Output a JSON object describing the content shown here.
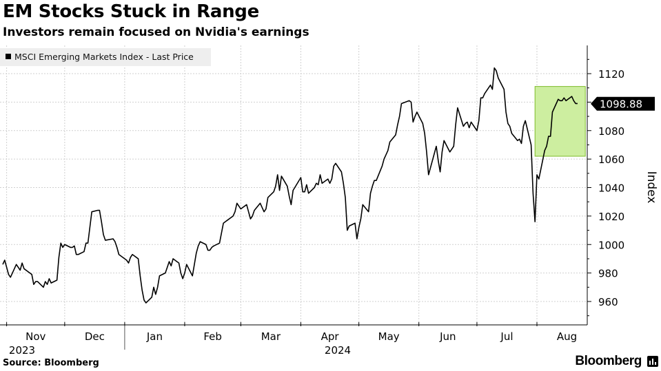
{
  "title": "EM Stocks Stuck in Range",
  "subtitle": "Investors remain focused on Nvidia's earnings",
  "source": "Source: Bloomberg",
  "brand": "Bloomberg",
  "chart_data": {
    "type": "line",
    "title": "EM Stocks Stuck in Range",
    "subtitle": "Investors remain focused on Nvidia's earnings",
    "xlabel": "",
    "ylabel": "Index",
    "ylim": [
      943,
      1140
    ],
    "yticks": [
      960,
      980,
      1000,
      1020,
      1040,
      1060,
      1080,
      1100,
      1120
    ],
    "xlim": [
      "2023-10-30",
      "2024-08-27"
    ],
    "x_tick_labels": [
      {
        "date": "2023-11-01",
        "label": "Nov"
      },
      {
        "date": "2023-12-01",
        "label": "Dec"
      },
      {
        "date": "2024-01-01",
        "label": "Jan"
      },
      {
        "date": "2024-02-01",
        "label": "Feb"
      },
      {
        "date": "2024-03-01",
        "label": "Mar"
      },
      {
        "date": "2024-04-01",
        "label": "Apr"
      },
      {
        "date": "2024-05-01",
        "label": "May"
      },
      {
        "date": "2024-06-01",
        "label": "Jun"
      },
      {
        "date": "2024-07-01",
        "label": "Jul"
      },
      {
        "date": "2024-08-01",
        "label": "Aug"
      }
    ],
    "year_labels": [
      {
        "date": "2023-12-01",
        "label": "2023"
      },
      {
        "date": "2024-01-01",
        "label": "2024"
      }
    ],
    "grid": true,
    "legend": {
      "position": "top-left",
      "entries": [
        "MSCI Emerging Markets Index - Last Price"
      ]
    },
    "last_value_label": "1098.88",
    "colors": {
      "line": "#000000",
      "highlight_fill": "#cdeea0",
      "highlight_stroke": "#7dbb2a",
      "legend_bg": "#eeeeee"
    },
    "highlight": {
      "x_start": "2024-07-31",
      "x_end": "2024-08-26",
      "y_start": 1062,
      "y_end": 1111
    },
    "series": [
      {
        "name": "MSCI Emerging Markets Index - Last Price",
        "points": [
          [
            "2023-10-30",
            986
          ],
          [
            "2023-10-31",
            989
          ],
          [
            "2023-11-01",
            984
          ],
          [
            "2023-11-02",
            979
          ],
          [
            "2023-11-03",
            977
          ],
          [
            "2023-11-06",
            986
          ],
          [
            "2023-11-07",
            984
          ],
          [
            "2023-11-08",
            982
          ],
          [
            "2023-11-09",
            987
          ],
          [
            "2023-11-10",
            983
          ],
          [
            "2023-11-13",
            980
          ],
          [
            "2023-11-14",
            979
          ],
          [
            "2023-11-15",
            972
          ],
          [
            "2023-11-16",
            974
          ],
          [
            "2023-11-17",
            974
          ],
          [
            "2023-11-20",
            970
          ],
          [
            "2023-11-21",
            974
          ],
          [
            "2023-11-22",
            972
          ],
          [
            "2023-11-23",
            976
          ],
          [
            "2023-11-24",
            973
          ],
          [
            "2023-11-27",
            975
          ],
          [
            "2023-11-28",
            991
          ],
          [
            "2023-11-29",
            1001
          ],
          [
            "2023-11-30",
            998
          ],
          [
            "2023-12-01",
            1000
          ],
          [
            "2023-12-04",
            998
          ],
          [
            "2023-12-05",
            998
          ],
          [
            "2023-12-06",
            999
          ],
          [
            "2023-12-07",
            993
          ],
          [
            "2023-12-08",
            993
          ],
          [
            "2023-12-11",
            995
          ],
          [
            "2023-12-12",
            1001
          ],
          [
            "2023-12-13",
            1001
          ],
          [
            "2023-12-14",
            1012
          ],
          [
            "2023-12-15",
            1023
          ],
          [
            "2023-12-18",
            1024
          ],
          [
            "2023-12-19",
            1024
          ],
          [
            "2023-12-20",
            1016
          ],
          [
            "2023-12-21",
            1007
          ],
          [
            "2023-12-22",
            1003
          ],
          [
            "2023-12-26",
            1004
          ],
          [
            "2023-12-27",
            1002
          ],
          [
            "2023-12-28",
            998
          ],
          [
            "2023-12-29",
            993
          ],
          [
            "2024-01-02",
            989
          ],
          [
            "2024-01-03",
            987
          ],
          [
            "2024-01-04",
            991
          ],
          [
            "2024-01-05",
            993
          ],
          [
            "2024-01-08",
            990
          ],
          [
            "2024-01-09",
            978
          ],
          [
            "2024-01-10",
            968
          ],
          [
            "2024-01-11",
            961
          ],
          [
            "2024-01-12",
            959
          ],
          [
            "2024-01-15",
            963
          ],
          [
            "2024-01-16",
            970
          ],
          [
            "2024-01-17",
            965
          ],
          [
            "2024-01-18",
            970
          ],
          [
            "2024-01-19",
            978
          ],
          [
            "2024-01-22",
            980
          ],
          [
            "2024-01-23",
            984
          ],
          [
            "2024-01-24",
            988
          ],
          [
            "2024-01-25",
            985
          ],
          [
            "2024-01-26",
            990
          ],
          [
            "2024-01-29",
            987
          ],
          [
            "2024-01-30",
            980
          ],
          [
            "2024-01-31",
            976
          ],
          [
            "2024-02-01",
            980
          ],
          [
            "2024-02-02",
            986
          ],
          [
            "2024-02-05",
            978
          ],
          [
            "2024-02-06",
            986
          ],
          [
            "2024-02-07",
            994
          ],
          [
            "2024-02-08",
            999
          ],
          [
            "2024-02-09",
            1002
          ],
          [
            "2024-02-12",
            1000
          ],
          [
            "2024-02-13",
            996
          ],
          [
            "2024-02-14",
            996
          ],
          [
            "2024-02-15",
            998
          ],
          [
            "2024-02-16",
            999
          ],
          [
            "2024-02-19",
            1001
          ],
          [
            "2024-02-20",
            1008
          ],
          [
            "2024-02-21",
            1015
          ],
          [
            "2024-02-22",
            1016
          ],
          [
            "2024-02-23",
            1017
          ],
          [
            "2024-02-26",
            1020
          ],
          [
            "2024-02-27",
            1023
          ],
          [
            "2024-02-28",
            1029
          ],
          [
            "2024-02-29",
            1027
          ],
          [
            "2024-03-01",
            1025
          ],
          [
            "2024-03-04",
            1028
          ],
          [
            "2024-03-05",
            1023
          ],
          [
            "2024-03-06",
            1018
          ],
          [
            "2024-03-07",
            1020
          ],
          [
            "2024-03-08",
            1024
          ],
          [
            "2024-03-11",
            1029
          ],
          [
            "2024-03-12",
            1026
          ],
          [
            "2024-03-13",
            1023
          ],
          [
            "2024-03-14",
            1025
          ],
          [
            "2024-03-15",
            1033
          ],
          [
            "2024-03-18",
            1037
          ],
          [
            "2024-03-19",
            1041
          ],
          [
            "2024-03-20",
            1049
          ],
          [
            "2024-03-21",
            1038
          ],
          [
            "2024-03-22",
            1048
          ],
          [
            "2024-03-25",
            1041
          ],
          [
            "2024-03-26",
            1034
          ],
          [
            "2024-03-27",
            1028
          ],
          [
            "2024-03-28",
            1038
          ],
          [
            "2024-04-01",
            1047
          ],
          [
            "2024-04-02",
            1037
          ],
          [
            "2024-04-03",
            1037
          ],
          [
            "2024-04-04",
            1042
          ],
          [
            "2024-04-05",
            1036
          ],
          [
            "2024-04-08",
            1040
          ],
          [
            "2024-04-09",
            1043
          ],
          [
            "2024-04-10",
            1042
          ],
          [
            "2024-04-11",
            1049
          ],
          [
            "2024-04-12",
            1043
          ],
          [
            "2024-04-15",
            1046
          ],
          [
            "2024-04-16",
            1043
          ],
          [
            "2024-04-17",
            1046
          ],
          [
            "2024-04-18",
            1055
          ],
          [
            "2024-04-19",
            1057
          ],
          [
            "2024-04-22",
            1051
          ],
          [
            "2024-04-23",
            1043
          ],
          [
            "2024-04-24",
            1033
          ],
          [
            "2024-04-25",
            1010
          ],
          [
            "2024-04-26",
            1013
          ],
          [
            "2024-04-29",
            1015
          ],
          [
            "2024-04-30",
            1004
          ],
          [
            "2024-05-01",
            1012
          ],
          [
            "2024-05-02",
            1018
          ],
          [
            "2024-05-03",
            1028
          ],
          [
            "2024-05-06",
            1023
          ],
          [
            "2024-05-07",
            1036
          ],
          [
            "2024-05-08",
            1041
          ],
          [
            "2024-05-09",
            1045
          ],
          [
            "2024-05-10",
            1045
          ],
          [
            "2024-05-13",
            1055
          ],
          [
            "2024-05-14",
            1060
          ],
          [
            "2024-05-15",
            1063
          ],
          [
            "2024-05-16",
            1066
          ],
          [
            "2024-05-17",
            1072
          ],
          [
            "2024-05-20",
            1077
          ],
          [
            "2024-05-21",
            1084
          ],
          [
            "2024-05-22",
            1090
          ],
          [
            "2024-05-23",
            1099
          ],
          [
            "2024-05-27",
            1101
          ],
          [
            "2024-05-28",
            1100
          ],
          [
            "2024-05-29",
            1086
          ],
          [
            "2024-05-30",
            1090
          ],
          [
            "2024-05-31",
            1093
          ],
          [
            "2024-06-03",
            1085
          ],
          [
            "2024-06-04",
            1078
          ],
          [
            "2024-06-05",
            1065
          ],
          [
            "2024-06-06",
            1049
          ],
          [
            "2024-06-07",
            1054
          ],
          [
            "2024-06-10",
            1069
          ],
          [
            "2024-06-11",
            1059
          ],
          [
            "2024-06-12",
            1051
          ],
          [
            "2024-06-13",
            1065
          ],
          [
            "2024-06-14",
            1073
          ],
          [
            "2024-06-17",
            1065
          ],
          [
            "2024-06-18",
            1067
          ],
          [
            "2024-06-19",
            1069
          ],
          [
            "2024-06-20",
            1084
          ],
          [
            "2024-06-21",
            1096
          ],
          [
            "2024-06-24",
            1083
          ],
          [
            "2024-06-25",
            1085
          ],
          [
            "2024-06-26",
            1086
          ],
          [
            "2024-06-27",
            1082
          ],
          [
            "2024-06-28",
            1086
          ],
          [
            "2024-07-01",
            1080
          ],
          [
            "2024-07-02",
            1087
          ],
          [
            "2024-07-03",
            1103
          ],
          [
            "2024-07-04",
            1103
          ],
          [
            "2024-07-05",
            1106
          ],
          [
            "2024-07-08",
            1112
          ],
          [
            "2024-07-09",
            1109
          ],
          [
            "2024-07-10",
            1124
          ],
          [
            "2024-07-11",
            1122
          ],
          [
            "2024-07-12",
            1117
          ],
          [
            "2024-07-15",
            1109
          ],
          [
            "2024-07-16",
            1093
          ],
          [
            "2024-07-17",
            1085
          ],
          [
            "2024-07-18",
            1083
          ],
          [
            "2024-07-19",
            1078
          ],
          [
            "2024-07-22",
            1073
          ],
          [
            "2024-07-23",
            1074
          ],
          [
            "2024-07-24",
            1071
          ],
          [
            "2024-07-25",
            1083
          ],
          [
            "2024-07-26",
            1087
          ],
          [
            "2024-07-29",
            1070
          ],
          [
            "2024-07-30",
            1036
          ],
          [
            "2024-07-31",
            1016
          ],
          [
            "2024-08-01",
            1049
          ],
          [
            "2024-08-02",
            1046
          ],
          [
            "2024-08-05",
            1066
          ],
          [
            "2024-08-06",
            1069
          ],
          [
            "2024-08-07",
            1076
          ],
          [
            "2024-08-08",
            1076
          ],
          [
            "2024-08-09",
            1093
          ],
          [
            "2024-08-12",
            1102
          ],
          [
            "2024-08-13",
            1101
          ],
          [
            "2024-08-14",
            1101
          ],
          [
            "2024-08-15",
            1103
          ],
          [
            "2024-08-16",
            1101
          ],
          [
            "2024-08-19",
            1104
          ],
          [
            "2024-08-20",
            1101
          ],
          [
            "2024-08-21",
            1099
          ],
          [
            "2024-08-22",
            1099
          ]
        ]
      }
    ]
  }
}
